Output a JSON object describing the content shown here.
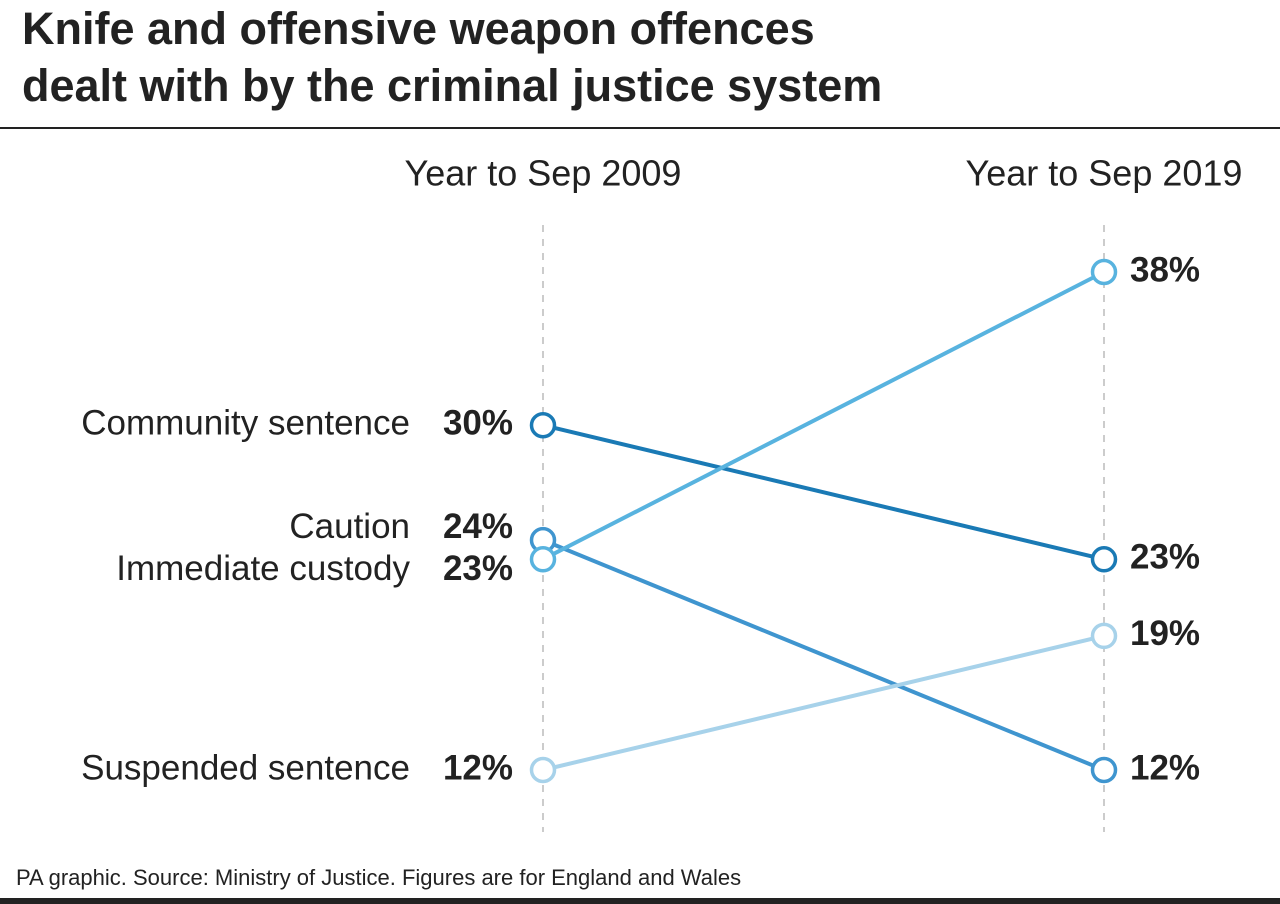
{
  "chart_data": {
    "type": "slope",
    "title": [
      "Knife and offensive weapon offences",
      "dealt with by the criminal justice system"
    ],
    "categories": [
      "Year to Sep 2009",
      "Year to Sep 2019"
    ],
    "series": [
      {
        "name": "Community sentence",
        "color": "#1a7ab5",
        "values": [
          30,
          23
        ],
        "value_labels": [
          "30%",
          "23%"
        ]
      },
      {
        "name": "Caution",
        "color": "#3f95cf",
        "values": [
          24,
          12
        ],
        "value_labels": [
          "24%",
          "12%"
        ]
      },
      {
        "name": "Immediate custody",
        "color": "#58b3df",
        "values": [
          23,
          38
        ],
        "value_labels": [
          "23%",
          "38%"
        ]
      },
      {
        "name": "Suspended sentence",
        "color": "#a7d2ea",
        "values": [
          12,
          19
        ],
        "value_labels": [
          "12%",
          "19%"
        ]
      }
    ],
    "source": "PA graphic. Source: Ministry of Justice. Figures are for England and Wales"
  }
}
